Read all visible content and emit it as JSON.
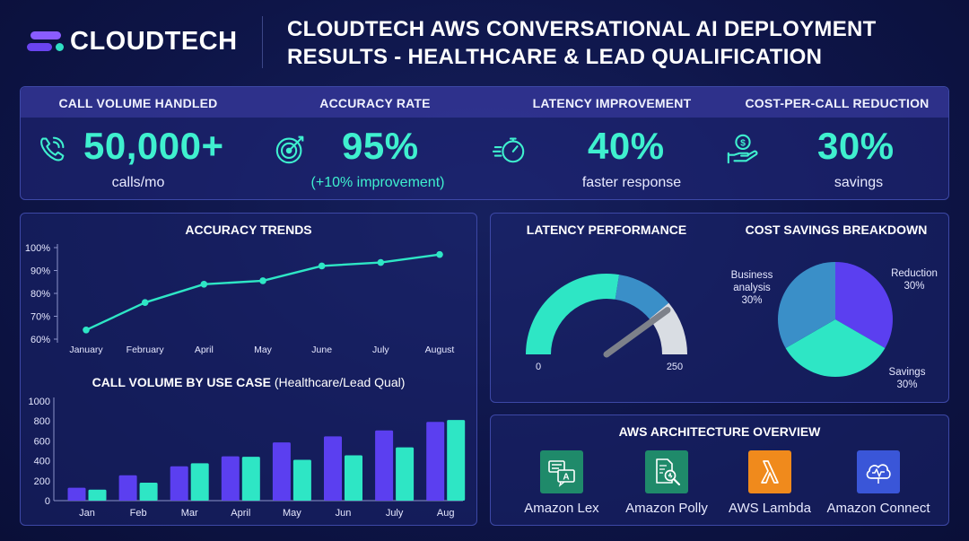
{
  "header": {
    "brand": "CLOUDTECH",
    "title_line1": "CLOUDTECH AWS CONVERSATIONAL AI DEPLOYMENT",
    "title_line2": "RESULTS - HEALTHCARE & LEAD QUALIFICATION"
  },
  "kpis": [
    {
      "label": "CALL VOLUME HANDLED",
      "value": "50,000+",
      "sub": "calls/mo",
      "icon": "phone-call-icon"
    },
    {
      "label": "ACCURACY RATE",
      "value": "95%",
      "sub": "(+10% improvement)",
      "icon": "target-icon"
    },
    {
      "label": "LATENCY IMPROVEMENT",
      "value": "40%",
      "sub": "faster response",
      "icon": "stopwatch-icon"
    },
    {
      "label": "COST-PER-CALL REDUCTION",
      "value": "30%",
      "sub": "savings",
      "icon": "hand-coin-icon"
    }
  ],
  "colors": {
    "accent": "#3ff0cf",
    "purple": "#5b3ff0",
    "teal": "#2ee6c5",
    "blue": "#3a8fc8",
    "gray": "#d9dde3"
  },
  "chart_data": [
    {
      "type": "line",
      "title": "ACCURACY TRENDS",
      "categories": [
        "January",
        "February",
        "April",
        "May",
        "June",
        "July",
        "August"
      ],
      "values": [
        64,
        76,
        84,
        85.5,
        92,
        93.5,
        97
      ],
      "ylim": [
        60,
        100
      ],
      "yticks": [
        "60%",
        "70%",
        "80%",
        "90%",
        "100%"
      ],
      "ytick_values": [
        60,
        70,
        80,
        90,
        100
      ],
      "grid": false
    },
    {
      "type": "bar",
      "title": "CALL VOLUME BY USE CASE",
      "subtitle": "(Healthcare/Lead Qual)",
      "categories": [
        "Jan",
        "Feb",
        "Mar",
        "April",
        "May",
        "Jun",
        "July",
        "Aug"
      ],
      "series": [
        {
          "values": [
            130,
            255,
            345,
            445,
            585,
            645,
            705,
            790
          ]
        },
        {
          "values": [
            110,
            180,
            375,
            440,
            410,
            455,
            535,
            810
          ]
        }
      ],
      "ylim": [
        0,
        1000
      ],
      "yticks": [
        "0",
        "200",
        "400",
        "600",
        "800",
        "1000"
      ],
      "ytick_values": [
        0,
        200,
        400,
        600,
        800,
        1000
      ],
      "grid": false
    },
    {
      "type": "gauge",
      "title": "LATENCY PERFORMANCE",
      "min": 0,
      "max": 250,
      "min_label": "0",
      "max_label": "250",
      "segments": [
        0.55,
        0.23,
        0.22
      ],
      "needle_fraction": 0.8
    },
    {
      "type": "pie",
      "title": "COST SAVINGS BREAKDOWN",
      "slices": [
        {
          "label": "Reduction",
          "pct_label": "30%",
          "value": 30
        },
        {
          "label": "Savings",
          "pct_label": "30%",
          "value": 30
        },
        {
          "label": "Business analysis",
          "line1": "Business",
          "line2": "analysis",
          "pct_label": "30%",
          "value": 30
        }
      ]
    }
  ],
  "architecture": {
    "title": "AWS ARCHITECTURE OVERVIEW",
    "items": [
      {
        "label": "Amazon Lex",
        "icon": "amazon-lex-icon",
        "color": "#1f8a6a"
      },
      {
        "label": "Amazon Polly",
        "icon": "amazon-polly-icon",
        "color": "#1f8a6a"
      },
      {
        "label": "AWS Lambda",
        "icon": "aws-lambda-icon",
        "color": "#f08a1c"
      },
      {
        "label": "Amazon Connect",
        "icon": "amazon-connect-icon",
        "color": "#3a56d8"
      }
    ]
  }
}
